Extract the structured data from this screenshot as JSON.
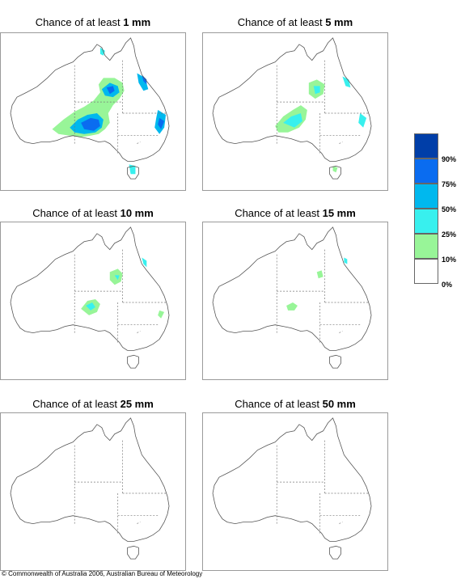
{
  "title_prefix": "Chance of at least",
  "panels": [
    {
      "amount": "1 mm"
    },
    {
      "amount": "5 mm"
    },
    {
      "amount": "10 mm"
    },
    {
      "amount": "15 mm"
    },
    {
      "amount": "25 mm"
    },
    {
      "amount": "50 mm"
    }
  ],
  "legend": {
    "labels": [
      "90%",
      "75%",
      "50%",
      "25%",
      "10%",
      "0%"
    ],
    "colors": [
      "#003ea8",
      "#0a6cf0",
      "#00b8ee",
      "#38f0ee",
      "#98f598",
      "#ffffff"
    ]
  },
  "copyright": "© Commonwealth of Australia 2006, Australian Bureau of Meteorology"
}
